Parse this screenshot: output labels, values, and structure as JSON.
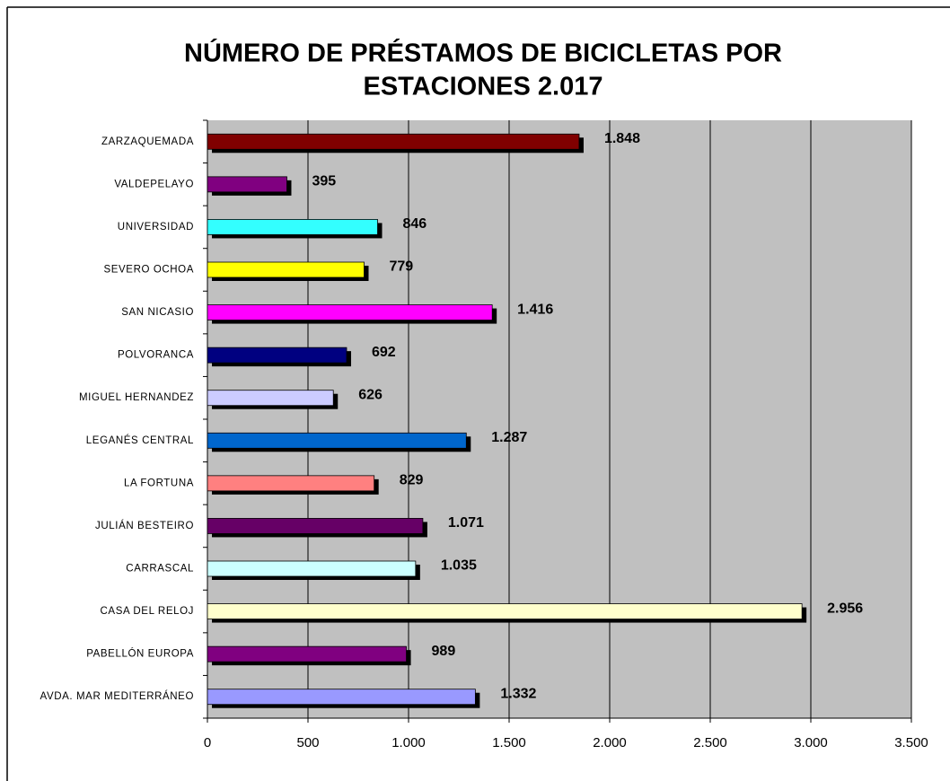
{
  "chart_data": {
    "type": "bar",
    "orientation": "horizontal",
    "title": [
      "NÚMERO DE PRÉSTAMOS DE BICICLETAS POR",
      "ESTACIONES 2.017"
    ],
    "categories": [
      "ZARZAQUEMADA",
      "VALDEPELAYO",
      "UNIVERSIDAD",
      "SEVERO OCHOA",
      "SAN NICASIO",
      "POLVORANCA",
      "MIGUEL HERNANDEZ",
      "LEGANÉS CENTRAL",
      "LA FORTUNA",
      "JULIÁN BESTEIRO",
      "CARRASCAL",
      "CASA DEL RELOJ",
      "PABELLÓN EUROPA",
      "AVDA. MAR MEDITERRÁNEO"
    ],
    "values": [
      1848,
      395,
      846,
      779,
      1416,
      692,
      626,
      1287,
      829,
      1071,
      1035,
      2956,
      989,
      1332
    ],
    "value_labels": [
      "1.848",
      "395",
      "846",
      "779",
      "1.416",
      "692",
      "626",
      "1.287",
      "829",
      "1.071",
      "1.035",
      "2.956",
      "989",
      "1.332"
    ],
    "colors": [
      "#800000",
      "#800080",
      "#33ffff",
      "#ffff00",
      "#ff00ff",
      "#000080",
      "#ccccff",
      "#0066cc",
      "#ff8080",
      "#660066",
      "#ccffff",
      "#ffffcc",
      "#800080",
      "#9999ff"
    ],
    "xlim": [
      0,
      3500
    ],
    "xticks": [
      0,
      500,
      {
        "value": 1000,
        "label": "1.000"
      },
      {
        "value": 1500,
        "label": "1.500"
      },
      {
        "value": 2000,
        "label": "2.000"
      },
      {
        "value": 2500,
        "label": "2.500"
      },
      {
        "value": 3000,
        "label": "3.000"
      },
      {
        "value": 3500,
        "label": "3.500"
      }
    ],
    "grid": true,
    "background": "#c0c0c0",
    "shadow": true
  }
}
